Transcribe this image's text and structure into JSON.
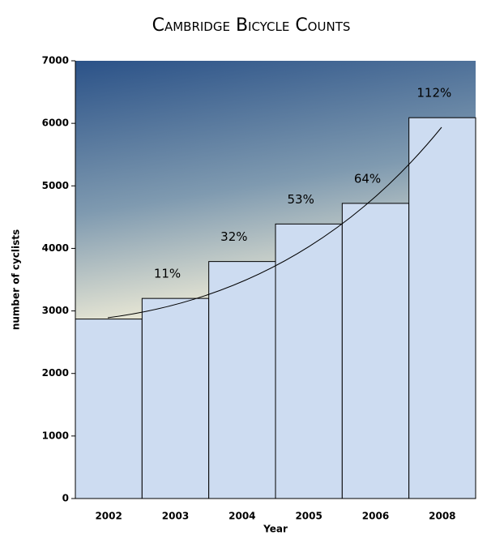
{
  "chart_data": {
    "type": "bar",
    "title": "Cambridge Bicycle Counts",
    "x_label": "Year",
    "y_label": "number of cyclists",
    "categories": [
      "2002",
      "2003",
      "2004",
      "2005",
      "2006",
      "2008"
    ],
    "values": [
      2870,
      3200,
      3790,
      4390,
      4720,
      6090
    ],
    "growth_labels": [
      null,
      "11%",
      "32%",
      "53%",
      "64%",
      "112%"
    ],
    "color": "#cddcf1",
    "ylim": [
      0,
      7000
    ],
    "yticks": [
      0,
      1000,
      2000,
      3000,
      4000,
      5000,
      6000,
      7000
    ]
  }
}
